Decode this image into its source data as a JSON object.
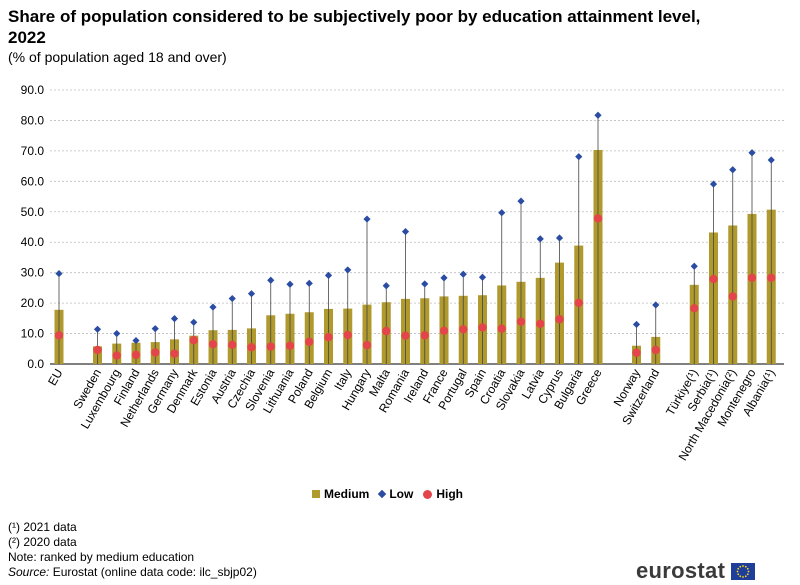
{
  "title": "Share of population considered to be subjectively poor by education attainment level, 2022",
  "subtitle": "(% of population aged 18 and over)",
  "legend": {
    "medium": "Medium",
    "low": "Low",
    "high": "High"
  },
  "notes": [
    "(¹) 2021 data",
    "(²) 2020 data",
    "Note: ranked by medium education"
  ],
  "source_label": "Source:",
  "source_text": "Eurostat (online data code: ilc_sbjp02)",
  "logo_text": "eurostat",
  "colors": {
    "medium": "#b09a2e",
    "low": "#2a4ca3",
    "high": "#e3454a",
    "grid": "#bdbdbd"
  },
  "chart_data": {
    "type": "bar",
    "ylim": [
      0,
      90
    ],
    "yticks": [
      "0.0",
      "10.0",
      "20.0",
      "30.0",
      "40.0",
      "50.0",
      "60.0",
      "70.0",
      "80.0",
      "90.0"
    ],
    "grid": true,
    "legend_position": "bottom",
    "categories": [
      "EU",
      "",
      "Sweden",
      "Luxembourg",
      "Finland",
      "Netherlands",
      "Germany",
      "Denmark",
      "Estonia",
      "Austria",
      "Czechia",
      "Slovenia",
      "Lithuania",
      "Poland",
      "Belgium",
      "Italy",
      "Hungary",
      "Malta",
      "Romania",
      "Ireland",
      "France",
      "Portugal",
      "Spain",
      "Croatia",
      "Slovakia",
      "Latvia",
      "Cyprus",
      "Bulgaria",
      "Greece",
      "",
      "Norway",
      "Switzerland",
      "",
      "Türkiye(¹)",
      "Serbia(¹)",
      "North Macedonia(²)",
      "Montenegro",
      "Albania(¹)"
    ],
    "series": [
      {
        "name": "Medium",
        "kind": "bar",
        "values": [
          17.8,
          null,
          5.8,
          6.7,
          7.0,
          7.2,
          8.1,
          9.3,
          11.1,
          11.2,
          11.7,
          16.0,
          16.5,
          17.0,
          18.1,
          18.2,
          19.5,
          20.3,
          21.4,
          21.6,
          22.2,
          22.4,
          22.6,
          25.8,
          27.0,
          28.3,
          33.3,
          38.9,
          70.3,
          null,
          6.0,
          8.9,
          null,
          26.0,
          43.2,
          45.5,
          49.3,
          50.7
        ]
      },
      {
        "name": "Low",
        "kind": "marker",
        "values": [
          29.7,
          null,
          11.4,
          10.0,
          7.7,
          11.6,
          14.9,
          13.7,
          18.7,
          21.5,
          23.1,
          27.5,
          26.2,
          26.5,
          29.1,
          30.9,
          47.6,
          25.7,
          43.5,
          26.3,
          28.3,
          29.5,
          28.5,
          49.7,
          53.5,
          41.1,
          41.4,
          68.1,
          81.7,
          null,
          13.0,
          19.4,
          null,
          32.1,
          59.1,
          63.8,
          69.4,
          67.0
        ]
      },
      {
        "name": "High",
        "kind": "marker",
        "values": [
          9.4,
          null,
          4.6,
          2.8,
          3.0,
          3.8,
          3.4,
          7.8,
          6.5,
          6.3,
          5.5,
          5.7,
          6.0,
          7.3,
          8.8,
          9.5,
          6.2,
          10.8,
          9.3,
          9.4,
          10.9,
          11.4,
          12.0,
          11.6,
          13.9,
          13.2,
          14.7,
          20.1,
          47.8,
          null,
          3.7,
          4.6,
          null,
          18.3,
          27.9,
          22.2,
          28.3,
          28.3
        ]
      }
    ]
  }
}
